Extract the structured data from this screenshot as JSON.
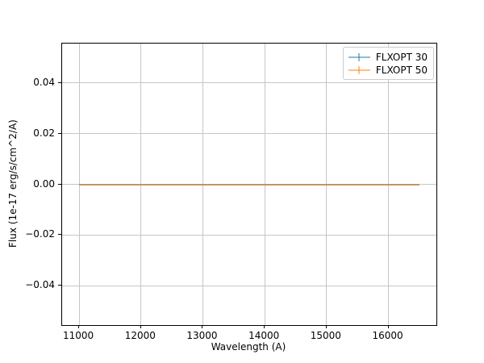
{
  "figure": {
    "background": "#ffffff"
  },
  "chart_data": {
    "type": "line",
    "style": "errorbar",
    "title": "",
    "xlabel": "Wavelength (A)",
    "ylabel": "Flux (1e-17 erg/s/cm^2/A)",
    "xlim": [
      10725,
      16775
    ],
    "ylim": [
      -0.0556,
      0.0556
    ],
    "grid": true,
    "grid_color": "#c6c6c6",
    "legend_position": "upper right",
    "x_ticks": {
      "values": [
        11000,
        12000,
        13000,
        14000,
        15000,
        16000
      ],
      "labels": [
        "11000",
        "12000",
        "13000",
        "14000",
        "15000",
        "16000"
      ]
    },
    "y_ticks": {
      "values": [
        0.04,
        0.02,
        0.0,
        -0.02,
        -0.04
      ],
      "labels": [
        "0.04",
        "0.02",
        "0.00",
        "−0.02",
        "−0.04"
      ]
    },
    "x": [
      11000,
      11500,
      12000,
      12500,
      13000,
      13500,
      14000,
      14500,
      15000,
      15500,
      16000,
      16500
    ],
    "series": [
      {
        "name": "FLXOPT 30",
        "color": "#1f77b4",
        "alpha": 0.5,
        "values": [
          0,
          0,
          0,
          0,
          0,
          0,
          0,
          0,
          0,
          0,
          0,
          0
        ],
        "yerr": [
          0,
          0,
          0,
          0,
          0,
          0,
          0,
          0,
          0,
          0,
          0,
          0
        ]
      },
      {
        "name": "FLXOPT 50",
        "color": "#ff7f0e",
        "alpha": 0.5,
        "values": [
          0,
          0,
          0,
          0,
          0,
          0,
          0,
          0,
          0,
          0,
          0,
          0
        ],
        "yerr": [
          0,
          0,
          0,
          0,
          0,
          0,
          0,
          0,
          0,
          0,
          0,
          0
        ]
      }
    ]
  }
}
